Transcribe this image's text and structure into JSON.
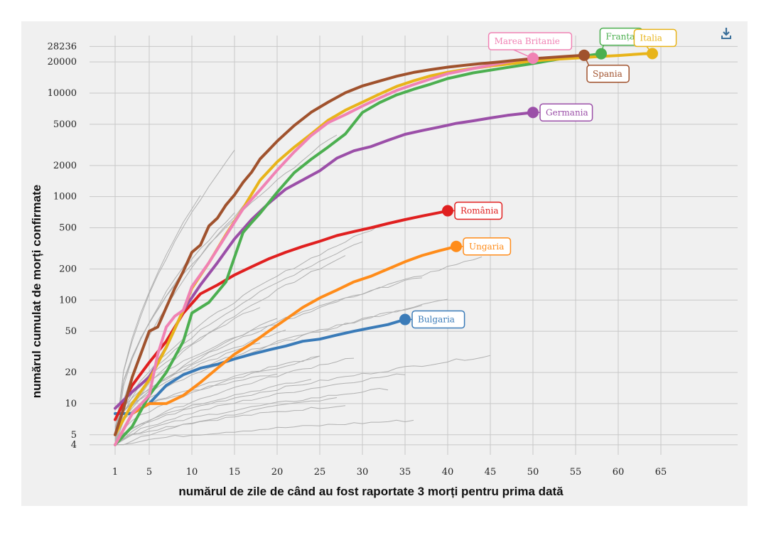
{
  "chart_data": {
    "type": "line",
    "xlabel": "numărul de zile de când au fost raportate 3 morți pentru prima dată",
    "ylabel": "numărul cumulat de morți confirmate",
    "x_scale": "linear",
    "y_scale": "log",
    "xlim": [
      -2,
      74
    ],
    "ylim": [
      3.2,
      36000
    ],
    "x_ticks": [
      1,
      5,
      10,
      15,
      20,
      25,
      30,
      35,
      40,
      45,
      50,
      55,
      60,
      65
    ],
    "y_ticks": [
      4,
      5,
      10,
      20,
      50,
      100,
      200,
      500,
      1000,
      2000,
      5000,
      10000,
      20000,
      28236
    ],
    "grid": true,
    "colors": {
      "grid": "#c8c8c8",
      "background_series": "#b0b0b0",
      "panel": "#f0f0f0"
    },
    "series": [
      {
        "name": "Italia",
        "color": "#e8b41a",
        "x": [
          1,
          3,
          5,
          7,
          9,
          10,
          12,
          14,
          16,
          18,
          20,
          22,
          24,
          26,
          28,
          30,
          32,
          34,
          36,
          38,
          40,
          42,
          45,
          48,
          50,
          52,
          55,
          58,
          60,
          63,
          64
        ],
        "y": [
          5,
          10,
          17,
          35,
          80,
          130,
          230,
          430,
          770,
          1440,
          2160,
          3000,
          4030,
          5480,
          6830,
          8170,
          9790,
          11590,
          13150,
          14680,
          15890,
          16880,
          18280,
          19470,
          20460,
          21060,
          21800,
          22600,
          23100,
          24000,
          24100
        ]
      },
      {
        "name": "Franța",
        "color": "#4caf50",
        "x": [
          1,
          3,
          5,
          7,
          9,
          10,
          12,
          14,
          15,
          16,
          17,
          18,
          20,
          22,
          24,
          26,
          28,
          30,
          32,
          34,
          36,
          38,
          40,
          43,
          46,
          50,
          53,
          56,
          58
        ],
        "y": [
          4,
          6,
          12,
          20,
          40,
          75,
          95,
          150,
          260,
          450,
          560,
          690,
          1100,
          1700,
          2300,
          3020,
          4030,
          6500,
          8080,
          9600,
          10900,
          12210,
          13830,
          15700,
          17170,
          19320,
          21300,
          22800,
          24000
        ]
      },
      {
        "name": "Marea Britanie",
        "color": "#f082b4",
        "x": [
          1,
          3,
          5,
          6,
          7,
          8,
          9,
          10,
          12,
          14,
          16,
          18,
          20,
          22,
          24,
          26,
          28,
          30,
          32,
          34,
          36,
          38,
          40,
          43,
          46,
          48,
          50
        ],
        "y": [
          4,
          8,
          12,
          30,
          55,
          70,
          80,
          135,
          230,
          420,
          760,
          1160,
          1800,
          2700,
          3900,
          5200,
          6200,
          7500,
          8950,
          10600,
          12100,
          13700,
          15400,
          17300,
          19300,
          20700,
          21700
        ]
      },
      {
        "name": "Spania",
        "color": "#a0522d",
        "x": [
          1,
          2,
          3,
          4,
          5,
          6,
          7,
          8,
          9,
          10,
          11,
          12,
          13,
          14,
          15,
          16,
          17,
          18,
          19,
          20,
          22,
          24,
          26,
          28,
          30,
          32,
          34,
          36,
          38,
          40,
          42,
          44,
          46,
          48,
          50,
          52,
          54,
          56
        ],
        "y": [
          5,
          9,
          18,
          30,
          50,
          55,
          85,
          130,
          190,
          290,
          340,
          520,
          620,
          830,
          1040,
          1370,
          1720,
          2310,
          2810,
          3430,
          4860,
          6540,
          8200,
          10090,
          11730,
          13060,
          14550,
          15840,
          16860,
          17800,
          18600,
          19300,
          20000,
          20800,
          21500,
          22100,
          22700,
          23200
        ]
      },
      {
        "name": "Germania",
        "color": "#9b4fa8",
        "x": [
          1,
          3,
          5,
          7,
          9,
          11,
          13,
          15,
          17,
          19,
          21,
          23,
          25,
          27,
          29,
          31,
          33,
          35,
          37,
          39,
          41,
          43,
          45,
          47,
          50
        ],
        "y": [
          9,
          13,
          18,
          35,
          80,
          140,
          230,
          390,
          600,
          860,
          1180,
          1450,
          1780,
          2350,
          2770,
          3040,
          3500,
          4000,
          4350,
          4700,
          5100,
          5400,
          5750,
          6100,
          6500
        ]
      },
      {
        "name": "România",
        "color": "#e02020",
        "x": [
          1,
          3,
          5,
          7,
          9,
          11,
          13,
          15,
          17,
          19,
          21,
          23,
          25,
          27,
          29,
          31,
          33,
          35,
          37,
          39,
          40
        ],
        "y": [
          7,
          15,
          25,
          40,
          75,
          115,
          140,
          175,
          210,
          250,
          290,
          330,
          370,
          420,
          460,
          500,
          550,
          600,
          650,
          700,
          730
        ]
      },
      {
        "name": "Ungaria",
        "color": "#ff8c1a",
        "x": [
          1,
          3,
          5,
          7,
          9,
          11,
          13,
          15,
          17,
          19,
          21,
          23,
          25,
          27,
          29,
          31,
          33,
          35,
          37,
          39,
          41
        ],
        "y": [
          4,
          8,
          10,
          10,
          12,
          16,
          22,
          30,
          38,
          50,
          65,
          85,
          105,
          125,
          150,
          170,
          200,
          235,
          270,
          300,
          330
        ]
      },
      {
        "name": "Bulgaria",
        "color": "#3a7bb8",
        "x": [
          1,
          3,
          5,
          7,
          9,
          11,
          13,
          15,
          17,
          19,
          21,
          23,
          25,
          27,
          29,
          31,
          33,
          35
        ],
        "y": [
          8,
          8,
          10,
          15,
          19,
          22,
          24,
          27,
          30,
          33,
          36,
          40,
          42,
          46,
          50,
          54,
          58,
          65
        ]
      }
    ],
    "background_series_count": 28,
    "callouts": [
      {
        "series": "Marea Britanie",
        "text": "Marea Britanie"
      },
      {
        "series": "Franța",
        "text": "Franța"
      },
      {
        "series": "Italia",
        "text": "Italia"
      },
      {
        "series": "Spania",
        "text": "Spania"
      },
      {
        "series": "Germania",
        "text": "Germania"
      },
      {
        "series": "România",
        "text": "România"
      },
      {
        "series": "Ungaria",
        "text": "Ungaria"
      },
      {
        "series": "Bulgaria",
        "text": "Bulgaria"
      }
    ]
  },
  "toolbar": {
    "download_icon": "download-icon"
  }
}
